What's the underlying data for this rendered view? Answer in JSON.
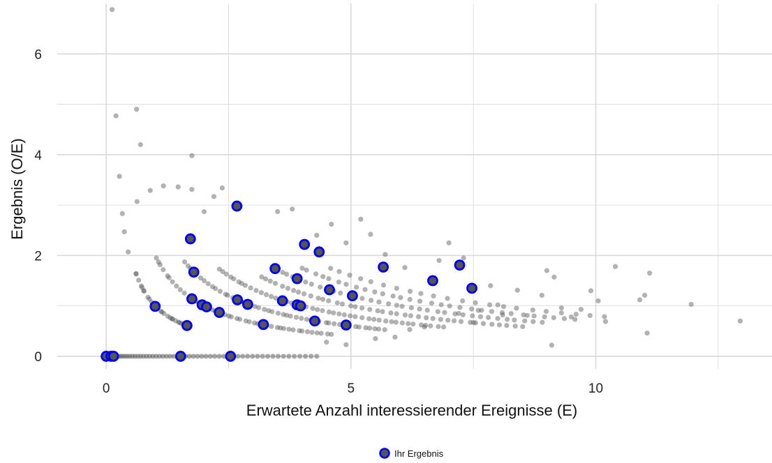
{
  "chart_data": {
    "type": "scatter",
    "title": "",
    "xlabel": "Erwartete Anzahl interessierender Ereignisse (E)",
    "ylabel": "Ergebnis (O/E)",
    "xlim": [
      -1.0,
      13.6
    ],
    "ylim": [
      -0.25,
      7.0
    ],
    "x_ticks": [
      0,
      5,
      10
    ],
    "x_tick_labels": [
      "0",
      "5",
      "10"
    ],
    "y_ticks": [
      0,
      2,
      4,
      6
    ],
    "y_tick_labels": [
      "0",
      "2",
      "4",
      "6"
    ],
    "grid": true,
    "legend_position": "bottom",
    "colors": {
      "background_points": "#555555",
      "highlight_fill": "#555555",
      "highlight_stroke": "#0000ee",
      "grid": "#d9d9d9"
    },
    "series": [
      {
        "name": "",
        "style": "background",
        "note_generation": "O/E points lying on curves y = k/x for integer observed counts plus scattered outliers",
        "curves": [
          {
            "k": 1,
            "x_min": 0.6,
            "x_max": 1.6,
            "count": 26
          },
          {
            "k": 2,
            "x_min": 1.0,
            "x_max": 4.6,
            "count": 44
          },
          {
            "k": 3,
            "x_min": 1.6,
            "x_max": 5.7,
            "count": 46
          },
          {
            "k": 4,
            "x_min": 2.3,
            "x_max": 6.9,
            "count": 44
          },
          {
            "k": 5,
            "x_min": 3.2,
            "x_max": 8.5,
            "count": 40
          },
          {
            "k": 6,
            "x_min": 3.6,
            "x_max": 8.9,
            "count": 34
          },
          {
            "k": 7,
            "x_min": 4.0,
            "x_max": 9.6,
            "count": 30
          },
          {
            "k": 8,
            "x_min": 4.6,
            "x_max": 10.2,
            "count": 22
          }
        ],
        "zeros_x_range": [
          0.0,
          4.3
        ],
        "zeros_count": 60,
        "extra_points": [
          [
            0.12,
            6.88
          ],
          [
            0.2,
            4.77
          ],
          [
            0.62,
            4.9
          ],
          [
            0.7,
            4.2
          ],
          [
            1.75,
            3.98
          ],
          [
            0.27,
            3.57
          ],
          [
            0.33,
            2.83
          ],
          [
            0.37,
            2.47
          ],
          [
            0.45,
            2.07
          ],
          [
            0.63,
            3.07
          ],
          [
            0.9,
            3.29
          ],
          [
            1.17,
            3.38
          ],
          [
            1.47,
            3.36
          ],
          [
            1.75,
            3.31
          ],
          [
            2.37,
            3.34
          ],
          [
            2.0,
            2.87
          ],
          [
            2.2,
            3.17
          ],
          [
            3.5,
            2.87
          ],
          [
            3.8,
            2.92
          ],
          [
            4.3,
            2.4
          ],
          [
            4.6,
            2.62
          ],
          [
            5.2,
            2.72
          ],
          [
            5.4,
            2.42
          ],
          [
            4.9,
            2.25
          ],
          [
            5.7,
            2.02
          ],
          [
            6.1,
            1.76
          ],
          [
            6.8,
            1.9
          ],
          [
            7.0,
            2.25
          ],
          [
            7.3,
            1.95
          ],
          [
            7.85,
            1.4
          ],
          [
            8.0,
            1.02
          ],
          [
            8.4,
            1.31
          ],
          [
            8.6,
            0.81
          ],
          [
            8.9,
            1.21
          ],
          [
            9.0,
            1.7
          ],
          [
            9.15,
            1.57
          ],
          [
            9.1,
            0.22
          ],
          [
            9.3,
            0.96
          ],
          [
            9.5,
            0.78
          ],
          [
            9.7,
            0.93
          ],
          [
            9.9,
            1.3
          ],
          [
            10.05,
            1.1
          ],
          [
            10.2,
            0.69
          ],
          [
            10.4,
            1.78
          ],
          [
            10.9,
            1.12
          ],
          [
            11.0,
            1.21
          ],
          [
            11.1,
            1.65
          ],
          [
            11.05,
            0.46
          ],
          [
            11.95,
            1.03
          ],
          [
            12.95,
            0.7
          ],
          [
            7.5,
            0.67
          ],
          [
            7.2,
            0.85
          ],
          [
            6.5,
            0.58
          ],
          [
            6.2,
            0.53
          ],
          [
            5.9,
            0.38
          ],
          [
            5.5,
            0.35
          ],
          [
            4.9,
            0.23
          ],
          [
            4.5,
            0.28
          ],
          [
            8.1,
            0.82
          ],
          [
            7.6,
            0.91
          ]
        ]
      },
      {
        "name": "Ihr Ergebnis",
        "style": "highlight",
        "points": [
          [
            0.0,
            0.0
          ],
          [
            0.1,
            0.0
          ],
          [
            0.15,
            0.0
          ],
          [
            1.52,
            0.0
          ],
          [
            2.54,
            0.0
          ],
          [
            1.0,
            0.99
          ],
          [
            1.65,
            0.61
          ],
          [
            1.72,
            2.33
          ],
          [
            1.75,
            1.14
          ],
          [
            1.79,
            1.67
          ],
          [
            1.96,
            1.02
          ],
          [
            2.05,
            0.98
          ],
          [
            2.31,
            0.87
          ],
          [
            2.67,
            2.98
          ],
          [
            2.68,
            1.12
          ],
          [
            2.89,
            1.03
          ],
          [
            3.21,
            0.63
          ],
          [
            3.45,
            1.74
          ],
          [
            3.6,
            1.1
          ],
          [
            3.9,
            1.54
          ],
          [
            3.9,
            1.02
          ],
          [
            3.97,
            1.0
          ],
          [
            4.05,
            2.22
          ],
          [
            4.26,
            0.7
          ],
          [
            4.35,
            2.07
          ],
          [
            4.56,
            1.32
          ],
          [
            4.9,
            0.62
          ],
          [
            5.03,
            1.2
          ],
          [
            5.66,
            1.77
          ],
          [
            6.67,
            1.5
          ],
          [
            7.22,
            1.81
          ],
          [
            7.47,
            1.35
          ]
        ]
      }
    ]
  }
}
